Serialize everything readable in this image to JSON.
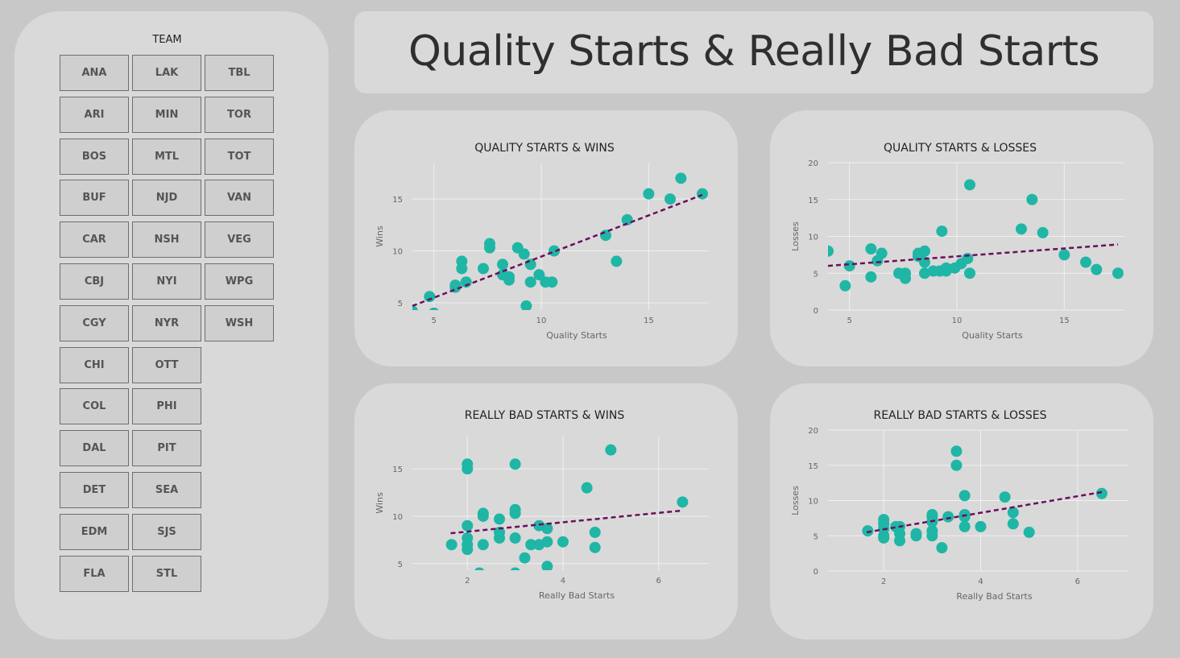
{
  "title": "Quality Starts & Really Bad Starts",
  "slicer": {
    "label": "TEAM",
    "columns": [
      [
        "ANA",
        "ARI",
        "BOS",
        "BUF",
        "CAR",
        "CBJ",
        "CGY",
        "CHI",
        "COL",
        "DAL",
        "DET",
        "EDM",
        "FLA"
      ],
      [
        "LAK",
        "MIN",
        "MTL",
        "NJD",
        "NSH",
        "NYI",
        "NYR",
        "OTT",
        "PHI",
        "PIT",
        "SEA",
        "SJS",
        "STL"
      ],
      [
        "TBL",
        "TOR",
        "TOT",
        "VAN",
        "VEG",
        "WPG",
        "WSH"
      ]
    ]
  },
  "colors": {
    "dot": "#1fb6a6",
    "trend": "#6b0f5a",
    "panel": "#d9d9d9",
    "background": "#c8c8c8"
  },
  "chart_data": [
    {
      "type": "scatter",
      "title": "QUALITY STARTS & WINS",
      "xlabel": "Quality Starts",
      "ylabel": "Wins",
      "xlim": [
        4.0,
        17.8
      ],
      "ylim": [
        4.3,
        18.5
      ],
      "xticks": [
        5,
        10,
        15
      ],
      "yticks": [
        5,
        10,
        15
      ],
      "trendline": [
        [
          4.0,
          4.7
        ],
        [
          17.5,
          15.4
        ]
      ],
      "points": [
        [
          4,
          4.2
        ],
        [
          4.8,
          5.6
        ],
        [
          5,
          4
        ],
        [
          6,
          6.5
        ],
        [
          6,
          6.7
        ],
        [
          6.3,
          8.3
        ],
        [
          6.3,
          9
        ],
        [
          6.5,
          7
        ],
        [
          7.3,
          8.3
        ],
        [
          7.6,
          10.3
        ],
        [
          7.6,
          10.7
        ],
        [
          8.2,
          7.7
        ],
        [
          8.2,
          8.7
        ],
        [
          8.5,
          7.2
        ],
        [
          8.5,
          7.5
        ],
        [
          8.9,
          10.3
        ],
        [
          9.2,
          9.7
        ],
        [
          9.3,
          4.7
        ],
        [
          9.5,
          7
        ],
        [
          9.5,
          8.7
        ],
        [
          9.9,
          7.7
        ],
        [
          10.2,
          7
        ],
        [
          10.5,
          7
        ],
        [
          10.6,
          10
        ],
        [
          13,
          11.5
        ],
        [
          13.5,
          9
        ],
        [
          14,
          13
        ],
        [
          15,
          15.5
        ],
        [
          16,
          15
        ],
        [
          16.5,
          17
        ],
        [
          17.5,
          15.5
        ]
      ]
    },
    {
      "type": "scatter",
      "title": "QUALITY STARTS & LOSSES",
      "xlabel": "Quality Starts",
      "ylabel": "Losses",
      "xlim": [
        4.0,
        17.8
      ],
      "ylim": [
        0,
        20
      ],
      "xticks": [
        5,
        10,
        15
      ],
      "yticks": [
        0,
        5,
        10,
        15,
        20
      ],
      "trendline": [
        [
          4.0,
          6.0
        ],
        [
          17.5,
          8.9
        ]
      ],
      "points": [
        [
          4,
          8
        ],
        [
          4.8,
          3.3
        ],
        [
          5,
          6
        ],
        [
          6,
          4.5
        ],
        [
          6,
          8.3
        ],
        [
          6.3,
          6.7
        ],
        [
          6.5,
          7.7
        ],
        [
          7.3,
          5
        ],
        [
          7.6,
          4.3
        ],
        [
          7.6,
          5
        ],
        [
          8.2,
          7.3
        ],
        [
          8.2,
          7.7
        ],
        [
          8.5,
          5
        ],
        [
          8.5,
          6.5
        ],
        [
          8.5,
          8
        ],
        [
          8.9,
          5.3
        ],
        [
          9.2,
          5.3
        ],
        [
          9.3,
          10.7
        ],
        [
          9.5,
          5.3
        ],
        [
          9.5,
          5.7
        ],
        [
          9.9,
          5.7
        ],
        [
          10.2,
          6.3
        ],
        [
          10.5,
          7
        ],
        [
          10.6,
          17
        ],
        [
          10.6,
          5
        ],
        [
          13,
          11
        ],
        [
          13.5,
          15
        ],
        [
          14,
          10.5
        ],
        [
          15,
          7.5
        ],
        [
          16,
          6.5
        ],
        [
          16.5,
          5.5
        ],
        [
          17.5,
          5
        ]
      ]
    },
    {
      "type": "scatter",
      "title": "REALLY BAD STARTS & WINS",
      "xlabel": "Really Bad Starts",
      "ylabel": "Wins",
      "xlim": [
        0.85,
        7.05
      ],
      "ylim": [
        4.3,
        18.5
      ],
      "xticks": [
        2,
        4,
        6
      ],
      "yticks": [
        5,
        10,
        15
      ],
      "trendline": [
        [
          1.65,
          8.2
        ],
        [
          6.5,
          10.6
        ]
      ],
      "points": [
        [
          1.67,
          7
        ],
        [
          2,
          6.5
        ],
        [
          2,
          7
        ],
        [
          2,
          7.7
        ],
        [
          2,
          9
        ],
        [
          2,
          15
        ],
        [
          2,
          15.5
        ],
        [
          2.25,
          4
        ],
        [
          2.33,
          7
        ],
        [
          2.33,
          10
        ],
        [
          2.33,
          10.3
        ],
        [
          2.67,
          7.7
        ],
        [
          2.67,
          8.3
        ],
        [
          2.67,
          9.7
        ],
        [
          3,
          4
        ],
        [
          3,
          7.7
        ],
        [
          3,
          10.3
        ],
        [
          3,
          10.7
        ],
        [
          3,
          15.5
        ],
        [
          3.2,
          5.6
        ],
        [
          3.33,
          7
        ],
        [
          3.5,
          7
        ],
        [
          3.5,
          9
        ],
        [
          3.67,
          4.7
        ],
        [
          3.67,
          7.3
        ],
        [
          3.67,
          8.7
        ],
        [
          4,
          7.3
        ],
        [
          4.5,
          13
        ],
        [
          4.67,
          6.7
        ],
        [
          4.67,
          8.3
        ],
        [
          5,
          17
        ],
        [
          6.5,
          11.5
        ]
      ]
    },
    {
      "type": "scatter",
      "title": "REALLY BAD STARTS & LOSSES",
      "xlabel": "Really Bad Starts",
      "ylabel": "Losses",
      "xlim": [
        0.85,
        7.05
      ],
      "ylim": [
        0,
        20
      ],
      "xticks": [
        2,
        4,
        6
      ],
      "yticks": [
        0,
        5,
        10,
        15,
        20
      ],
      "trendline": [
        [
          1.65,
          5.5
        ],
        [
          6.5,
          11.2
        ]
      ],
      "points": [
        [
          1.67,
          5.7
        ],
        [
          2,
          4.7
        ],
        [
          2,
          5
        ],
        [
          2,
          6
        ],
        [
          2,
          6.7
        ],
        [
          2,
          7.3
        ],
        [
          2.25,
          6.3
        ],
        [
          2.33,
          4.3
        ],
        [
          2.33,
          5.3
        ],
        [
          2.33,
          6.3
        ],
        [
          2.67,
          5
        ],
        [
          2.67,
          5.3
        ],
        [
          3,
          5
        ],
        [
          3,
          5.7
        ],
        [
          3,
          7
        ],
        [
          3,
          7.7
        ],
        [
          3,
          8
        ],
        [
          3.2,
          3.3
        ],
        [
          3.33,
          7.7
        ],
        [
          3.5,
          15
        ],
        [
          3.5,
          17
        ],
        [
          3.67,
          6.3
        ],
        [
          3.67,
          7.7
        ],
        [
          3.67,
          8
        ],
        [
          3.67,
          10.7
        ],
        [
          4,
          6.3
        ],
        [
          4.5,
          10.5
        ],
        [
          4.67,
          6.7
        ],
        [
          4.67,
          8.3
        ],
        [
          5,
          5.5
        ],
        [
          6.5,
          11
        ]
      ]
    }
  ]
}
